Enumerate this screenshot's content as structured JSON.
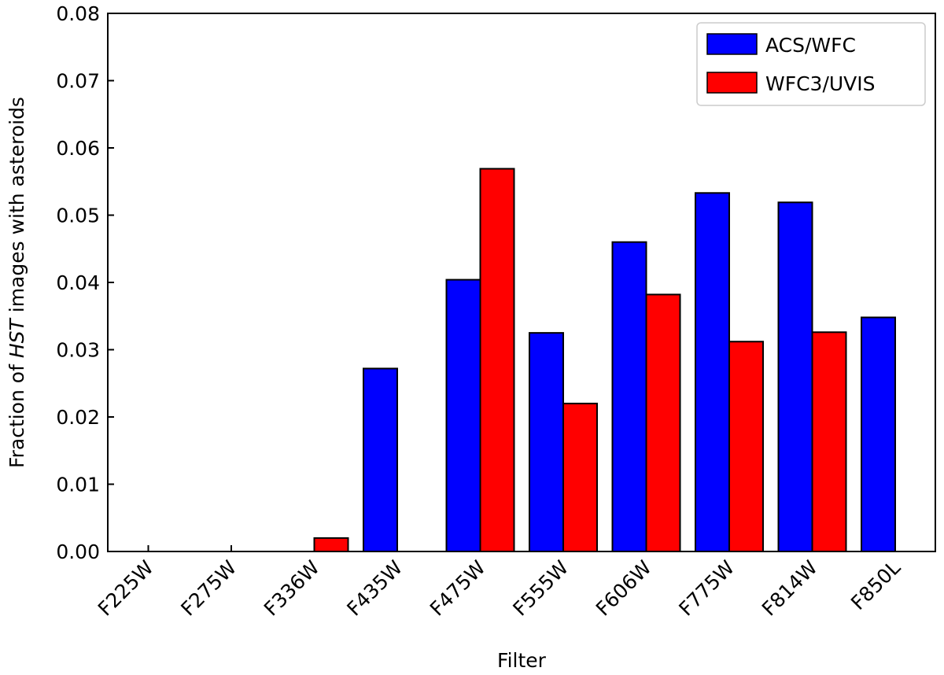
{
  "chart_data": {
    "type": "bar",
    "categories": [
      "F225W",
      "F275W",
      "F336W",
      "F435W",
      "F475W",
      "F555W",
      "F606W",
      "F775W",
      "F814W",
      "F850L"
    ],
    "series": [
      {
        "name": "ACS/WFC",
        "color": "#0000ff",
        "values": [
          0.0,
          0.0,
          0.0,
          0.0272,
          0.0404,
          0.0325,
          0.046,
          0.0533,
          0.0519,
          0.0348
        ]
      },
      {
        "name": "WFC3/UVIS",
        "color": "#ff0000",
        "values": [
          0.0,
          0.0,
          0.002,
          0.0,
          0.0569,
          0.022,
          0.0382,
          0.0312,
          0.0326,
          0.0
        ]
      }
    ],
    "xlabel": "Filter",
    "ylabel_parts": [
      "Fraction of ",
      "HST",
      " images with asteroids"
    ],
    "ylim": [
      0,
      0.08
    ],
    "yticks": [
      "0.00",
      "0.01",
      "0.02",
      "0.03",
      "0.04",
      "0.05",
      "0.06",
      "0.07",
      "0.08"
    ],
    "grid": false,
    "legend_position": "top-right"
  }
}
